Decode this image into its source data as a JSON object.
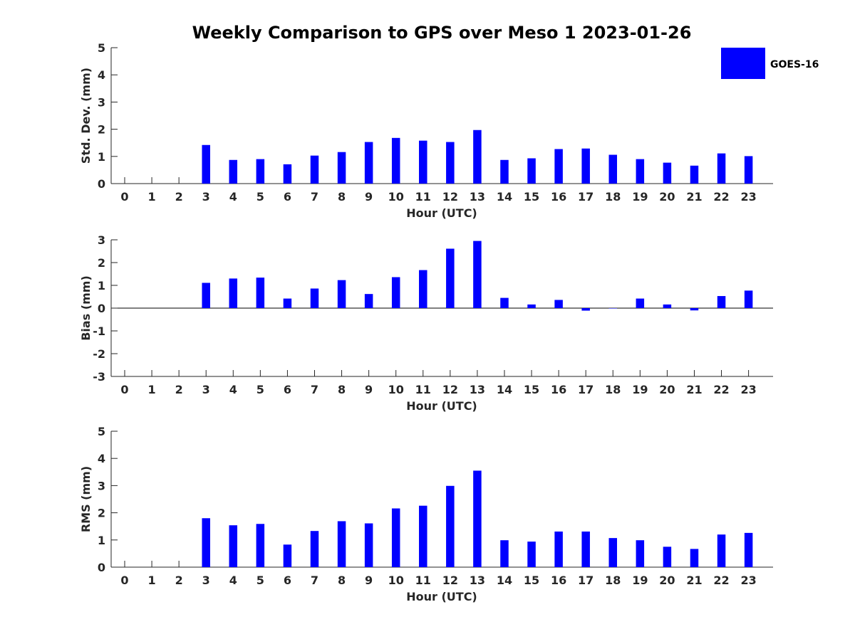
{
  "title": "Weekly Comparison to GPS over Meso 1 2023-01-26",
  "legend": {
    "label": "GOES-16",
    "color": "#0000ff"
  },
  "chart_data": [
    {
      "type": "bar",
      "xlabel": "Hour (UTC)",
      "ylabel": "Std. Dev. (mm)",
      "ylim": [
        0,
        5
      ],
      "yticks": [
        0,
        1,
        2,
        3,
        4,
        5
      ],
      "categories": [
        "0",
        "1",
        "2",
        "3",
        "4",
        "5",
        "6",
        "7",
        "8",
        "9",
        "10",
        "11",
        "12",
        "13",
        "14",
        "15",
        "16",
        "17",
        "18",
        "19",
        "20",
        "21",
        "22",
        "23"
      ],
      "series": [
        {
          "name": "GOES-16",
          "color": "#0000ff",
          "values": [
            null,
            null,
            null,
            1.42,
            0.87,
            0.9,
            0.71,
            1.03,
            1.16,
            1.53,
            1.68,
            1.58,
            1.53,
            1.97,
            0.87,
            0.93,
            1.27,
            1.29,
            1.06,
            0.9,
            0.77,
            0.66,
            1.11,
            1.01
          ]
        }
      ]
    },
    {
      "type": "bar",
      "xlabel": "Hour (UTC)",
      "ylabel": "Bias (mm)",
      "ylim": [
        -3,
        3
      ],
      "yticks": [
        -3,
        -2,
        -1,
        0,
        1,
        2,
        3
      ],
      "categories": [
        "0",
        "1",
        "2",
        "3",
        "4",
        "5",
        "6",
        "7",
        "8",
        "9",
        "10",
        "11",
        "12",
        "13",
        "14",
        "15",
        "16",
        "17",
        "18",
        "19",
        "20",
        "21",
        "22",
        "23"
      ],
      "series": [
        {
          "name": "GOES-16",
          "color": "#0000ff",
          "values": [
            null,
            null,
            null,
            1.11,
            1.3,
            1.34,
            0.42,
            0.86,
            1.23,
            0.62,
            1.36,
            1.67,
            2.61,
            2.95,
            0.45,
            0.16,
            0.36,
            -0.11,
            0.0,
            0.42,
            0.16,
            -0.1,
            0.53,
            0.77
          ]
        }
      ]
    },
    {
      "type": "bar",
      "xlabel": "Hour (UTC)",
      "ylabel": "RMS (mm)",
      "ylim": [
        0,
        5
      ],
      "yticks": [
        0,
        1,
        2,
        3,
        4,
        5
      ],
      "categories": [
        "0",
        "1",
        "2",
        "3",
        "4",
        "5",
        "6",
        "7",
        "8",
        "9",
        "10",
        "11",
        "12",
        "13",
        "14",
        "15",
        "16",
        "17",
        "18",
        "19",
        "20",
        "21",
        "22",
        "23"
      ],
      "series": [
        {
          "name": "GOES-16",
          "color": "#0000ff",
          "values": [
            null,
            null,
            null,
            1.8,
            1.54,
            1.59,
            0.83,
            1.33,
            1.69,
            1.61,
            2.16,
            2.26,
            2.99,
            3.55,
            0.99,
            0.94,
            1.31,
            1.31,
            1.07,
            0.99,
            0.75,
            0.67,
            1.2,
            1.26
          ]
        }
      ]
    }
  ]
}
